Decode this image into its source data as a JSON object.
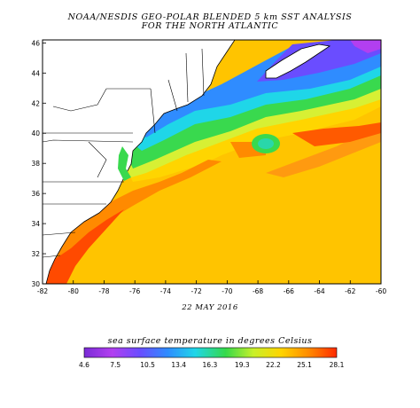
{
  "title_line1": "NOAA/NESDIS GEO-POLAR BLENDED 5 km SST ANALYSIS",
  "title_line2": "FOR THE NORTH ATLANTIC",
  "date": "22 MAY 2016",
  "colorbar_title": "sea surface temperature in degrees Celsius",
  "colorbar_labels": [
    "4.6",
    "7.5",
    "10.5",
    "13.4",
    "16.3",
    "19.3",
    "22.2",
    "25.1",
    "28.1"
  ],
  "colorbar_range": [
    4.6,
    28.1
  ],
  "colorbar_colors": [
    "#7a2bd6",
    "#b23ff0",
    "#6a4dff",
    "#2f8cff",
    "#1fd6e8",
    "#35d94a",
    "#c8f02a",
    "#ffd400",
    "#ff8a00",
    "#ff2a00"
  ],
  "x_ticks": [
    "-82",
    "-80",
    "-78",
    "-76",
    "-74",
    "-72",
    "-70",
    "-68",
    "-66",
    "-64",
    "-62",
    "-60"
  ],
  "y_ticks": [
    "30",
    "32",
    "34",
    "36",
    "38",
    "40",
    "42",
    "44",
    "46"
  ],
  "lon_range": [
    -82,
    -60
  ],
  "lat_range": [
    30,
    46.2
  ]
}
